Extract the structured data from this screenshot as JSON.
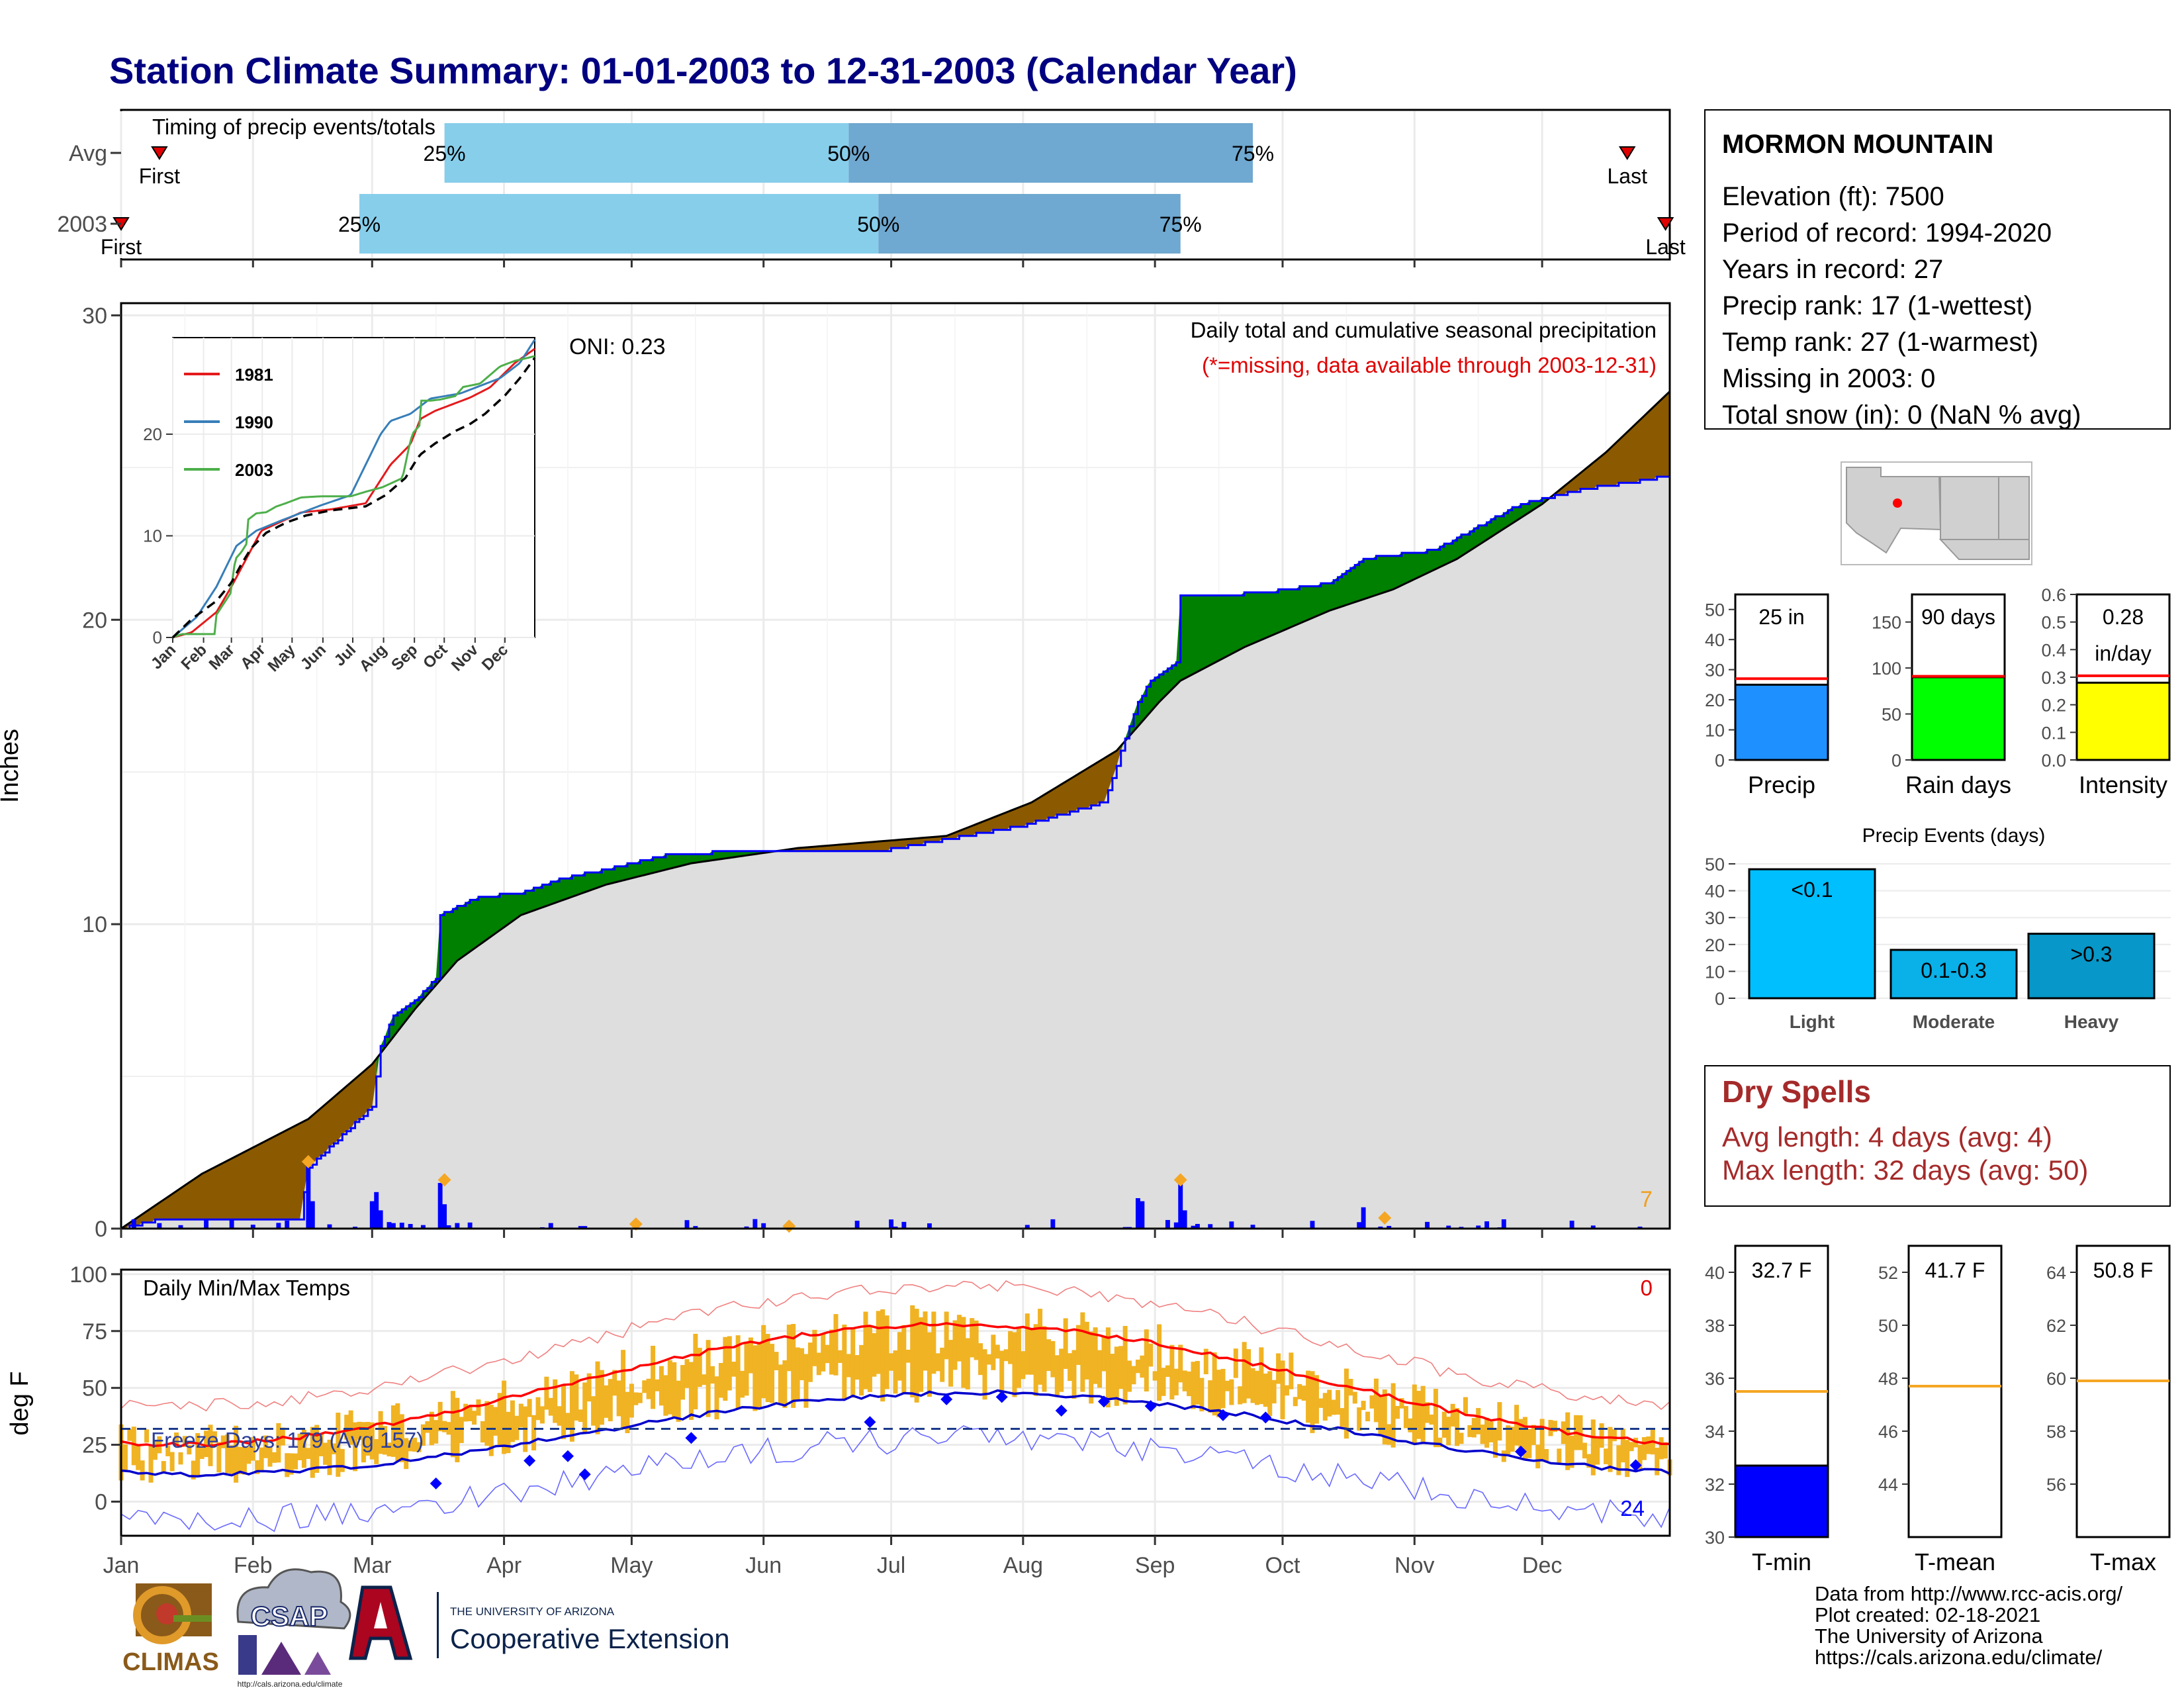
{
  "page_title": "Station Climate Summary: 01-01-2003 to 12-31-2003 (Calendar Year)",
  "timing": {
    "title": "Timing of precip events/totals",
    "rows": [
      {
        "label": "Avg",
        "first_label": "First",
        "last_label": "Last",
        "p25": "25%",
        "p50": "50%",
        "p75": "75%",
        "first_day": 10,
        "q25_day": 77,
        "q50_day": 172,
        "q75_day": 267,
        "last_day": 355
      },
      {
        "label": "2003",
        "first_label": "First",
        "last_label": "Last",
        "p25": "25%",
        "p50": "50%",
        "p75": "75%",
        "first_day": 1,
        "q25_day": 57,
        "q50_day": 179,
        "q75_day": 250,
        "last_day": 364
      }
    ]
  },
  "precip_panel": {
    "ylabel": "Inches",
    "oni": "ONI: 0.23",
    "title": "Daily total and cumulative seasonal precipitation",
    "missing_note": "(*=missing, data available through 2003-12-31)",
    "missing_count": "7",
    "y_ticks": [
      "0",
      "10",
      "20",
      "30"
    ],
    "ylim": [
      0,
      30
    ]
  },
  "inset": {
    "legend": [
      "1981",
      "1990",
      "2003"
    ],
    "colors": {
      "1981": "#e41a1c",
      "1990": "#377eb8",
      "2003": "#4daf4a"
    },
    "y_ticks": [
      "0",
      "10",
      "20"
    ],
    "x_ticks": [
      "Jan",
      "Feb",
      "Mar",
      "Apr",
      "May",
      "Jun",
      "Jul",
      "Aug",
      "Sep",
      "Oct",
      "Nov",
      "Dec"
    ]
  },
  "temp_panel": {
    "ylabel": "deg F",
    "title": "Daily Min/Max Temps",
    "freeze_days": "Freeze Days: 179 (Avg 157)",
    "count_top": "0",
    "count_bottom": "24",
    "y_ticks": [
      "0",
      "25",
      "50",
      "75",
      "100"
    ],
    "ylim": [
      -15,
      100
    ]
  },
  "months": [
    "Jan",
    "Feb",
    "Mar",
    "Apr",
    "May",
    "Jun",
    "Jul",
    "Aug",
    "Sep",
    "Oct",
    "Nov",
    "Dec"
  ],
  "station": {
    "name": "MORMON MOUNTAIN",
    "elevation": "Elevation (ft): 7500",
    "period": "Period of record: 1994-2020",
    "years": "Years in record: 27",
    "precip_rank": "Precip rank: 17 (1-wettest)",
    "temp_rank": "Temp rank: 27 (1-warmest)",
    "missing": "Missing in 2003: 0",
    "snow": "Total snow (in): 0 (NaN % avg)"
  },
  "summary_bars": [
    {
      "label": "Precip",
      "value_label": "25 in",
      "value": 25,
      "avg": 27,
      "ymax": 55,
      "ticks": [
        "0",
        "10",
        "20",
        "30",
        "40",
        "50"
      ],
      "tick_vals": [
        0,
        10,
        20,
        30,
        40,
        50
      ],
      "color": "#1e90ff"
    },
    {
      "label": "Rain days",
      "value_label": "90 days",
      "value": 90,
      "avg": 91,
      "ymax": 180,
      "ticks": [
        "0",
        "50",
        "100",
        "150"
      ],
      "tick_vals": [
        0,
        50,
        100,
        150
      ],
      "color": "#00ff00"
    },
    {
      "label": "Intensity",
      "value_label": "0.28",
      "value_label2": "in/day",
      "value": 0.28,
      "avg": 0.305,
      "ymax": 0.6,
      "ticks": [
        "0.0",
        "0.1",
        "0.2",
        "0.3",
        "0.4",
        "0.5",
        "0.6"
      ],
      "tick_vals": [
        0,
        0.1,
        0.2,
        0.3,
        0.4,
        0.5,
        0.6
      ],
      "color": "#ffff00"
    }
  ],
  "precip_events": {
    "title": "Precip Events (days)",
    "categories": [
      "Light",
      "Moderate",
      "Heavy"
    ],
    "labels": [
      "<0.1",
      "0.1-0.3",
      ">0.3"
    ],
    "values": [
      48,
      18,
      24
    ],
    "colors": [
      "#00bfff",
      "#0ab0e8",
      "#0797c8"
    ],
    "y_ticks": [
      "0",
      "10",
      "20",
      "30",
      "40",
      "50"
    ],
    "ylim": [
      0,
      50
    ]
  },
  "dry_spells": {
    "title": "Dry Spells",
    "avg": "Avg length: 4 days (avg: 4)",
    "max": "Max length: 32 days (avg: 50)"
  },
  "temp_bars": [
    {
      "label": "T-min",
      "value_label": "32.7 F",
      "value": 32.7,
      "avg": 35.5,
      "ylim": [
        30,
        41
      ],
      "ticks": [
        "30",
        "32",
        "34",
        "36",
        "38",
        "40"
      ],
      "tick_vals": [
        30,
        32,
        34,
        36,
        38,
        40
      ],
      "fill": "#0000ff"
    },
    {
      "label": "T-mean",
      "value_label": "41.7 F",
      "value": 41.7,
      "avg": 47.7,
      "ylim": [
        42,
        53
      ],
      "ticks": [
        "44",
        "46",
        "48",
        "50",
        "52"
      ],
      "tick_vals": [
        44,
        46,
        48,
        50,
        52
      ],
      "fill": "#ffffff"
    },
    {
      "label": "T-max",
      "value_label": "50.8 F",
      "value": 50.8,
      "avg": 59.9,
      "ylim": [
        54,
        65
      ],
      "ticks": [
        "56",
        "58",
        "60",
        "62",
        "64"
      ],
      "tick_vals": [
        56,
        58,
        60,
        62,
        64
      ],
      "fill": "#ffffff"
    }
  ],
  "credits": [
    "Data from http://www.rcc-acis.org/",
    "Plot created: 02-18-2021",
    "The University of Arizona",
    "https://cals.arizona.edu/climate/"
  ],
  "logos": {
    "climas": "CLIMAS",
    "csap": "CSAP",
    "csap_url": "http://cals.arizona.edu/climate",
    "ua_small": "THE UNIVERSITY OF ARIZONA",
    "ua_big": "Cooperative Extension"
  },
  "chart_data": [
    {
      "type": "area",
      "title": "Daily total and cumulative seasonal precipitation",
      "ylabel": "Inches",
      "ylim": [
        0,
        30
      ],
      "series": [
        {
          "name": "2003",
          "values": [
            [
              1,
              0
            ],
            [
              10,
              0.3
            ],
            [
              18,
              0.3
            ],
            [
              43,
              0.3
            ],
            [
              45,
              2
            ],
            [
              60,
              4
            ],
            [
              62,
              6
            ],
            [
              65,
              7
            ],
            [
              70,
              7.5
            ],
            [
              75,
              8.2
            ],
            [
              76,
              10.3
            ],
            [
              85,
              10.9
            ],
            [
              95,
              11
            ],
            [
              105,
              11.5
            ],
            [
              115,
              11.8
            ],
            [
              130,
              12.3
            ],
            [
              150,
              12.4
            ],
            [
              180,
              12.4
            ],
            [
              195,
              12.8
            ],
            [
              212,
              13.2
            ],
            [
              232,
              14
            ],
            [
              240,
              17.3
            ],
            [
              243,
              18
            ],
            [
              249,
              18.6
            ],
            [
              250,
              20.8
            ],
            [
              260,
              20.8
            ],
            [
              270,
              20.9
            ],
            [
              285,
              21.2
            ],
            [
              293,
              22
            ],
            [
              310,
              22.3
            ],
            [
              330,
              23.8
            ],
            [
              345,
              24.3
            ],
            [
              360,
              24.6
            ],
            [
              364,
              24.7
            ]
          ]
        }
      ]
    },
    {
      "type": "line",
      "title": "Daily Min/Max Temps",
      "ylabel": "deg F",
      "ylim": [
        -15,
        100
      ]
    }
  ]
}
